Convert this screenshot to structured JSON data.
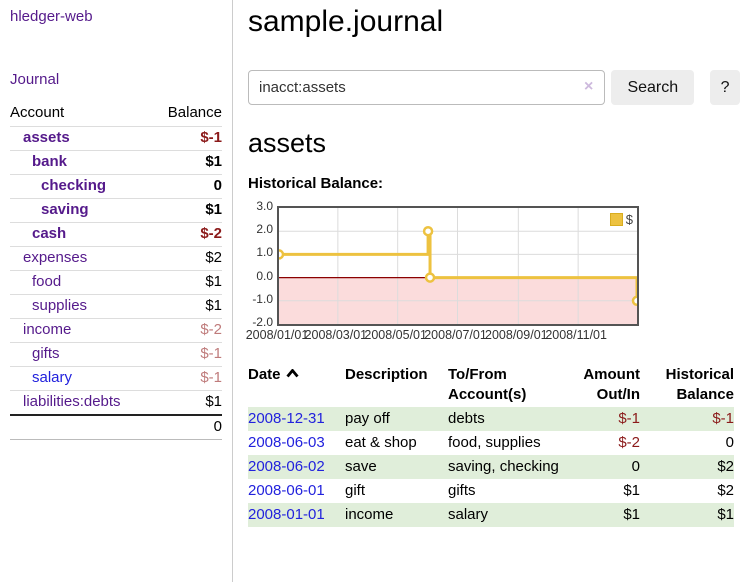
{
  "brand": "hledger-web",
  "nav": {
    "journal": "Journal"
  },
  "sidebar": {
    "header": {
      "account": "Account",
      "balance": "Balance"
    },
    "accounts": [
      {
        "name": "assets",
        "balance": "$-1",
        "indent": 1,
        "bold": true,
        "negative": "strong"
      },
      {
        "name": "bank",
        "balance": "$1",
        "indent": 2,
        "bold": true,
        "negative": null
      },
      {
        "name": "checking",
        "balance": "0",
        "indent": 3,
        "bold": true,
        "negative": null
      },
      {
        "name": "saving",
        "balance": "$1",
        "indent": 3,
        "bold": true,
        "negative": null
      },
      {
        "name": "cash",
        "balance": "$-2",
        "indent": 2,
        "bold": true,
        "negative": "strong"
      },
      {
        "name": "expenses",
        "balance": "$2",
        "indent": 1,
        "bold": false,
        "negative": null
      },
      {
        "name": "food",
        "balance": "$1",
        "indent": 2,
        "bold": false,
        "negative": null
      },
      {
        "name": "supplies",
        "balance": "$1",
        "indent": 2,
        "bold": false,
        "negative": null
      },
      {
        "name": "income",
        "balance": "$-2",
        "indent": 1,
        "bold": false,
        "negative": "soft"
      },
      {
        "name": "gifts",
        "balance": "$-1",
        "indent": 2,
        "bold": false,
        "negative": "soft"
      },
      {
        "name": "salary",
        "balance": "$-1",
        "indent": 2,
        "bold": false,
        "negative": "soft",
        "blue": true
      },
      {
        "name": "liabilities:debts",
        "balance": "$1",
        "indent": 1,
        "bold": false,
        "negative": null
      }
    ],
    "total": "0"
  },
  "main": {
    "title": "sample.journal",
    "search": {
      "value": "inacct:assets",
      "clear": "×",
      "button_label": "Search",
      "help_label": "?"
    },
    "account_heading": "assets",
    "chart_heading": "Historical Balance:"
  },
  "chart_data": {
    "type": "line",
    "title": "Historical Balance:",
    "legend": {
      "label": "$",
      "position": "top-right"
    },
    "x_domain": [
      "2008-01-01",
      "2008-12-31"
    ],
    "x_ticks": [
      "2008/01/01",
      "2008/03/01",
      "2008/05/01",
      "2008/07/01",
      "2008/09/01",
      "2008/11/01"
    ],
    "y_ticks": [
      3.0,
      2.0,
      1.0,
      0.0,
      -1.0,
      -2.0
    ],
    "ylim": [
      -2,
      3
    ],
    "step": "left",
    "grid": true,
    "series": [
      {
        "name": "$",
        "color": "#EDC240",
        "points": [
          {
            "x": "2008-01-01",
            "y": 1
          },
          {
            "x": "2008-06-01",
            "y": 2
          },
          {
            "x": "2008-06-03",
            "y": 0
          },
          {
            "x": "2008-12-31",
            "y": -1
          }
        ]
      }
    ],
    "annotations": {
      "zero_line_color": "#8b0000",
      "negative_region_fill": "#fbdcdc",
      "grid_color": "#dcdcdc"
    }
  },
  "register": {
    "headers": {
      "date": "Date",
      "description": "Description",
      "tofrom": "To/From Account(s)",
      "amount": "Amount Out/In",
      "balance": "Historical Balance"
    },
    "sort": {
      "column": "date",
      "direction": "asc"
    },
    "rows": [
      {
        "date": "2008-12-31",
        "description": "pay off",
        "accounts": [
          "debts"
        ],
        "amount": "$-1",
        "amount_negative": true,
        "balance": "$-1",
        "balance_negative": true
      },
      {
        "date": "2008-06-03",
        "description": "eat & shop",
        "accounts": [
          "food",
          "supplies"
        ],
        "amount": "$-2",
        "amount_negative": true,
        "balance": "0",
        "balance_negative": false
      },
      {
        "date": "2008-06-02",
        "description": "save",
        "accounts": [
          "saving",
          "checking"
        ],
        "amount": "0",
        "amount_negative": false,
        "balance": "$2",
        "balance_negative": false
      },
      {
        "date": "2008-06-01",
        "description": "gift",
        "accounts": [
          "gifts"
        ],
        "amount": "$1",
        "amount_negative": false,
        "balance": "$2",
        "balance_negative": false
      },
      {
        "date": "2008-01-01",
        "description": "income",
        "accounts": [
          "salary"
        ],
        "amount": "$1",
        "amount_negative": false,
        "balance": "$1",
        "balance_negative": false
      }
    ]
  },
  "colors": {
    "link_purple": "#551A8B",
    "link_blue": "#2222DD",
    "negative_strong": "#8b1a1a",
    "negative_soft": "#bf7b7b",
    "row_stripe_green": "#e0eeda",
    "chart_series_gold": "#EDC240",
    "chart_zero_line": "#8b0000",
    "chart_negative_fill": "#fbdcdc"
  }
}
